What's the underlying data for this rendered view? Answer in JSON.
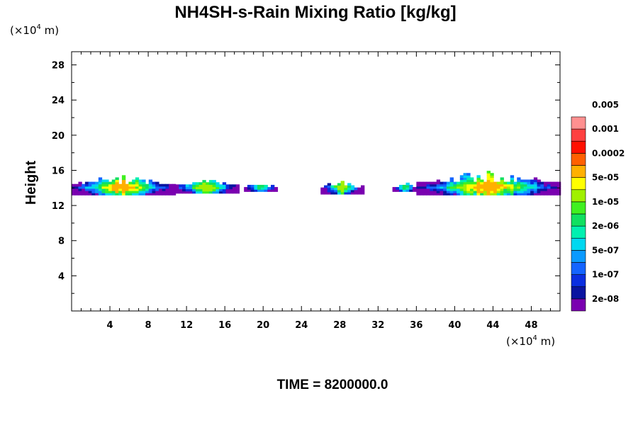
{
  "chart_data": {
    "type": "heatmap",
    "title": "NH4SH-s-Rain Mixing Ratio [kg/kg]",
    "ylabel": "Height",
    "xlabel": "",
    "x_unit": "(×10⁴ m)",
    "y_unit": "(×10⁴ m)",
    "x_unit_base": "(×10",
    "x_unit_exp": "4",
    "x_unit_tail": " m)",
    "y_unit_base": "(×10",
    "y_unit_exp": "4",
    "y_unit_tail": " m)",
    "xlim": [
      0,
      51
    ],
    "ylim": [
      0,
      29.5
    ],
    "x_ticks": [
      4,
      8,
      12,
      16,
      20,
      24,
      28,
      32,
      36,
      40,
      44,
      48
    ],
    "y_ticks": [
      4,
      8,
      12,
      16,
      20,
      24,
      28
    ],
    "grid": false,
    "colorbar": {
      "placement": "right",
      "colors": [
        "#7a00b0",
        "#0a14a0",
        "#0a2ee0",
        "#1464ff",
        "#0a9aff",
        "#00d8f0",
        "#00f0b0",
        "#10e060",
        "#40f020",
        "#a0f000",
        "#ffff00",
        "#ffb000",
        "#ff6000",
        "#ff1000",
        "#ff4040",
        "#ff9090"
      ],
      "labels": [
        "2e-08",
        "1e-07",
        "5e-07",
        "2e-06",
        "1e-05",
        "5e-05",
        "0.0002",
        "0.001",
        "0.005"
      ]
    },
    "cloud_regions": [
      {
        "x0": 0.0,
        "x1": 10.5,
        "y0": 13.2,
        "y1": 15.6,
        "peak": "5e-05"
      },
      {
        "x0": 10.5,
        "x1": 17.5,
        "y0": 13.4,
        "y1": 15.1,
        "peak": "1e-05"
      },
      {
        "x0": 18.0,
        "x1": 21.5,
        "y0": 13.6,
        "y1": 14.6,
        "peak": "2e-06"
      },
      {
        "x0": 26.0,
        "x1": 30.5,
        "y0": 13.3,
        "y1": 14.9,
        "peak": "1e-05"
      },
      {
        "x0": 33.5,
        "x1": 36.0,
        "y0": 13.6,
        "y1": 14.6,
        "peak": "2e-06"
      },
      {
        "x0": 36.0,
        "x1": 51.0,
        "y0": 13.2,
        "y1": 16.0,
        "peak": "5e-05"
      }
    ]
  },
  "footer": {
    "time_label": "TIME = 8200000.0"
  }
}
